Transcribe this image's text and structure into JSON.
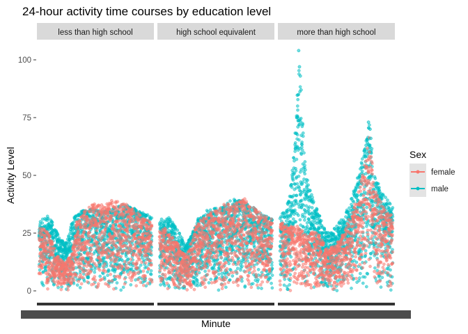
{
  "chart_data": {
    "type": "scatter",
    "title": "24-hour activity time courses by education level",
    "xlabel": "Minute",
    "ylabel": "Activity Level",
    "ylim": [
      0,
      105
    ],
    "yticks": [
      0,
      25,
      50,
      75,
      100
    ],
    "xlim": [
      1,
      1440
    ],
    "facets": [
      "less than high school",
      "high school equivalent",
      "more than high school"
    ],
    "legend": {
      "title": "Sex",
      "position": "right"
    },
    "series": [
      {
        "name": "female",
        "color": "#F8766D"
      },
      {
        "name": "male",
        "color": "#00BFC4"
      }
    ],
    "profiles": [
      {
        "facet": "less than high school",
        "female_upper": [
          [
            1,
            28
          ],
          [
            120,
            26
          ],
          [
            240,
            15
          ],
          [
            330,
            12
          ],
          [
            420,
            16
          ],
          [
            480,
            30
          ],
          [
            600,
            36
          ],
          [
            720,
            38
          ],
          [
            840,
            37
          ],
          [
            960,
            40
          ],
          [
            1080,
            38
          ],
          [
            1200,
            36
          ],
          [
            1320,
            32
          ],
          [
            1440,
            30
          ]
        ],
        "male_upper": [
          [
            1,
            30
          ],
          [
            120,
            33
          ],
          [
            240,
            25
          ],
          [
            330,
            20
          ],
          [
            420,
            30
          ],
          [
            480,
            34
          ],
          [
            600,
            36
          ],
          [
            720,
            35
          ],
          [
            840,
            35
          ],
          [
            960,
            36
          ],
          [
            1080,
            38
          ],
          [
            1200,
            36
          ],
          [
            1320,
            34
          ],
          [
            1440,
            32
          ]
        ],
        "peaks": []
      },
      {
        "facet": "high school equivalent",
        "female_upper": [
          [
            1,
            30
          ],
          [
            120,
            25
          ],
          [
            240,
            20
          ],
          [
            330,
            15
          ],
          [
            420,
            22
          ],
          [
            480,
            30
          ],
          [
            600,
            33
          ],
          [
            720,
            35
          ],
          [
            840,
            38
          ],
          [
            960,
            38
          ],
          [
            1080,
            40
          ],
          [
            1200,
            36
          ],
          [
            1320,
            33
          ],
          [
            1440,
            31
          ]
        ],
        "male_upper": [
          [
            1,
            31
          ],
          [
            120,
            32
          ],
          [
            240,
            26
          ],
          [
            330,
            20
          ],
          [
            420,
            25
          ],
          [
            480,
            31
          ],
          [
            600,
            35
          ],
          [
            720,
            36
          ],
          [
            840,
            38
          ],
          [
            960,
            40
          ],
          [
            1080,
            39
          ],
          [
            1200,
            36
          ],
          [
            1320,
            33
          ],
          [
            1440,
            31
          ]
        ],
        "peaks": []
      },
      {
        "facet": "more than high school",
        "female_upper": [
          [
            1,
            30
          ],
          [
            120,
            28
          ],
          [
            240,
            28
          ],
          [
            330,
            24
          ],
          [
            420,
            26
          ],
          [
            480,
            25
          ],
          [
            540,
            22
          ],
          [
            600,
            18
          ],
          [
            720,
            20
          ],
          [
            840,
            28
          ],
          [
            960,
            38
          ],
          [
            1080,
            55
          ],
          [
            1140,
            68
          ],
          [
            1200,
            45
          ],
          [
            1320,
            36
          ],
          [
            1440,
            33
          ]
        ],
        "male_upper": [
          [
            1,
            32
          ],
          [
            120,
            40
          ],
          [
            180,
            60
          ],
          [
            210,
            80
          ],
          [
            240,
            100
          ],
          [
            270,
            85
          ],
          [
            330,
            50
          ],
          [
            420,
            40
          ],
          [
            540,
            30
          ],
          [
            600,
            25
          ],
          [
            720,
            28
          ],
          [
            840,
            34
          ],
          [
            960,
            45
          ],
          [
            1080,
            62
          ],
          [
            1140,
            73
          ],
          [
            1200,
            50
          ],
          [
            1320,
            42
          ],
          [
            1440,
            36
          ]
        ],
        "peaks": [
          [
            240,
            104
          ],
          [
            250,
            97
          ],
          [
            260,
            93
          ],
          [
            270,
            87
          ],
          [
            220,
            75
          ],
          [
            230,
            71
          ],
          [
            1130,
            73
          ],
          [
            1150,
            70
          ],
          [
            1160,
            66
          ],
          [
            1100,
            63
          ],
          [
            1090,
            58
          ]
        ]
      }
    ]
  }
}
